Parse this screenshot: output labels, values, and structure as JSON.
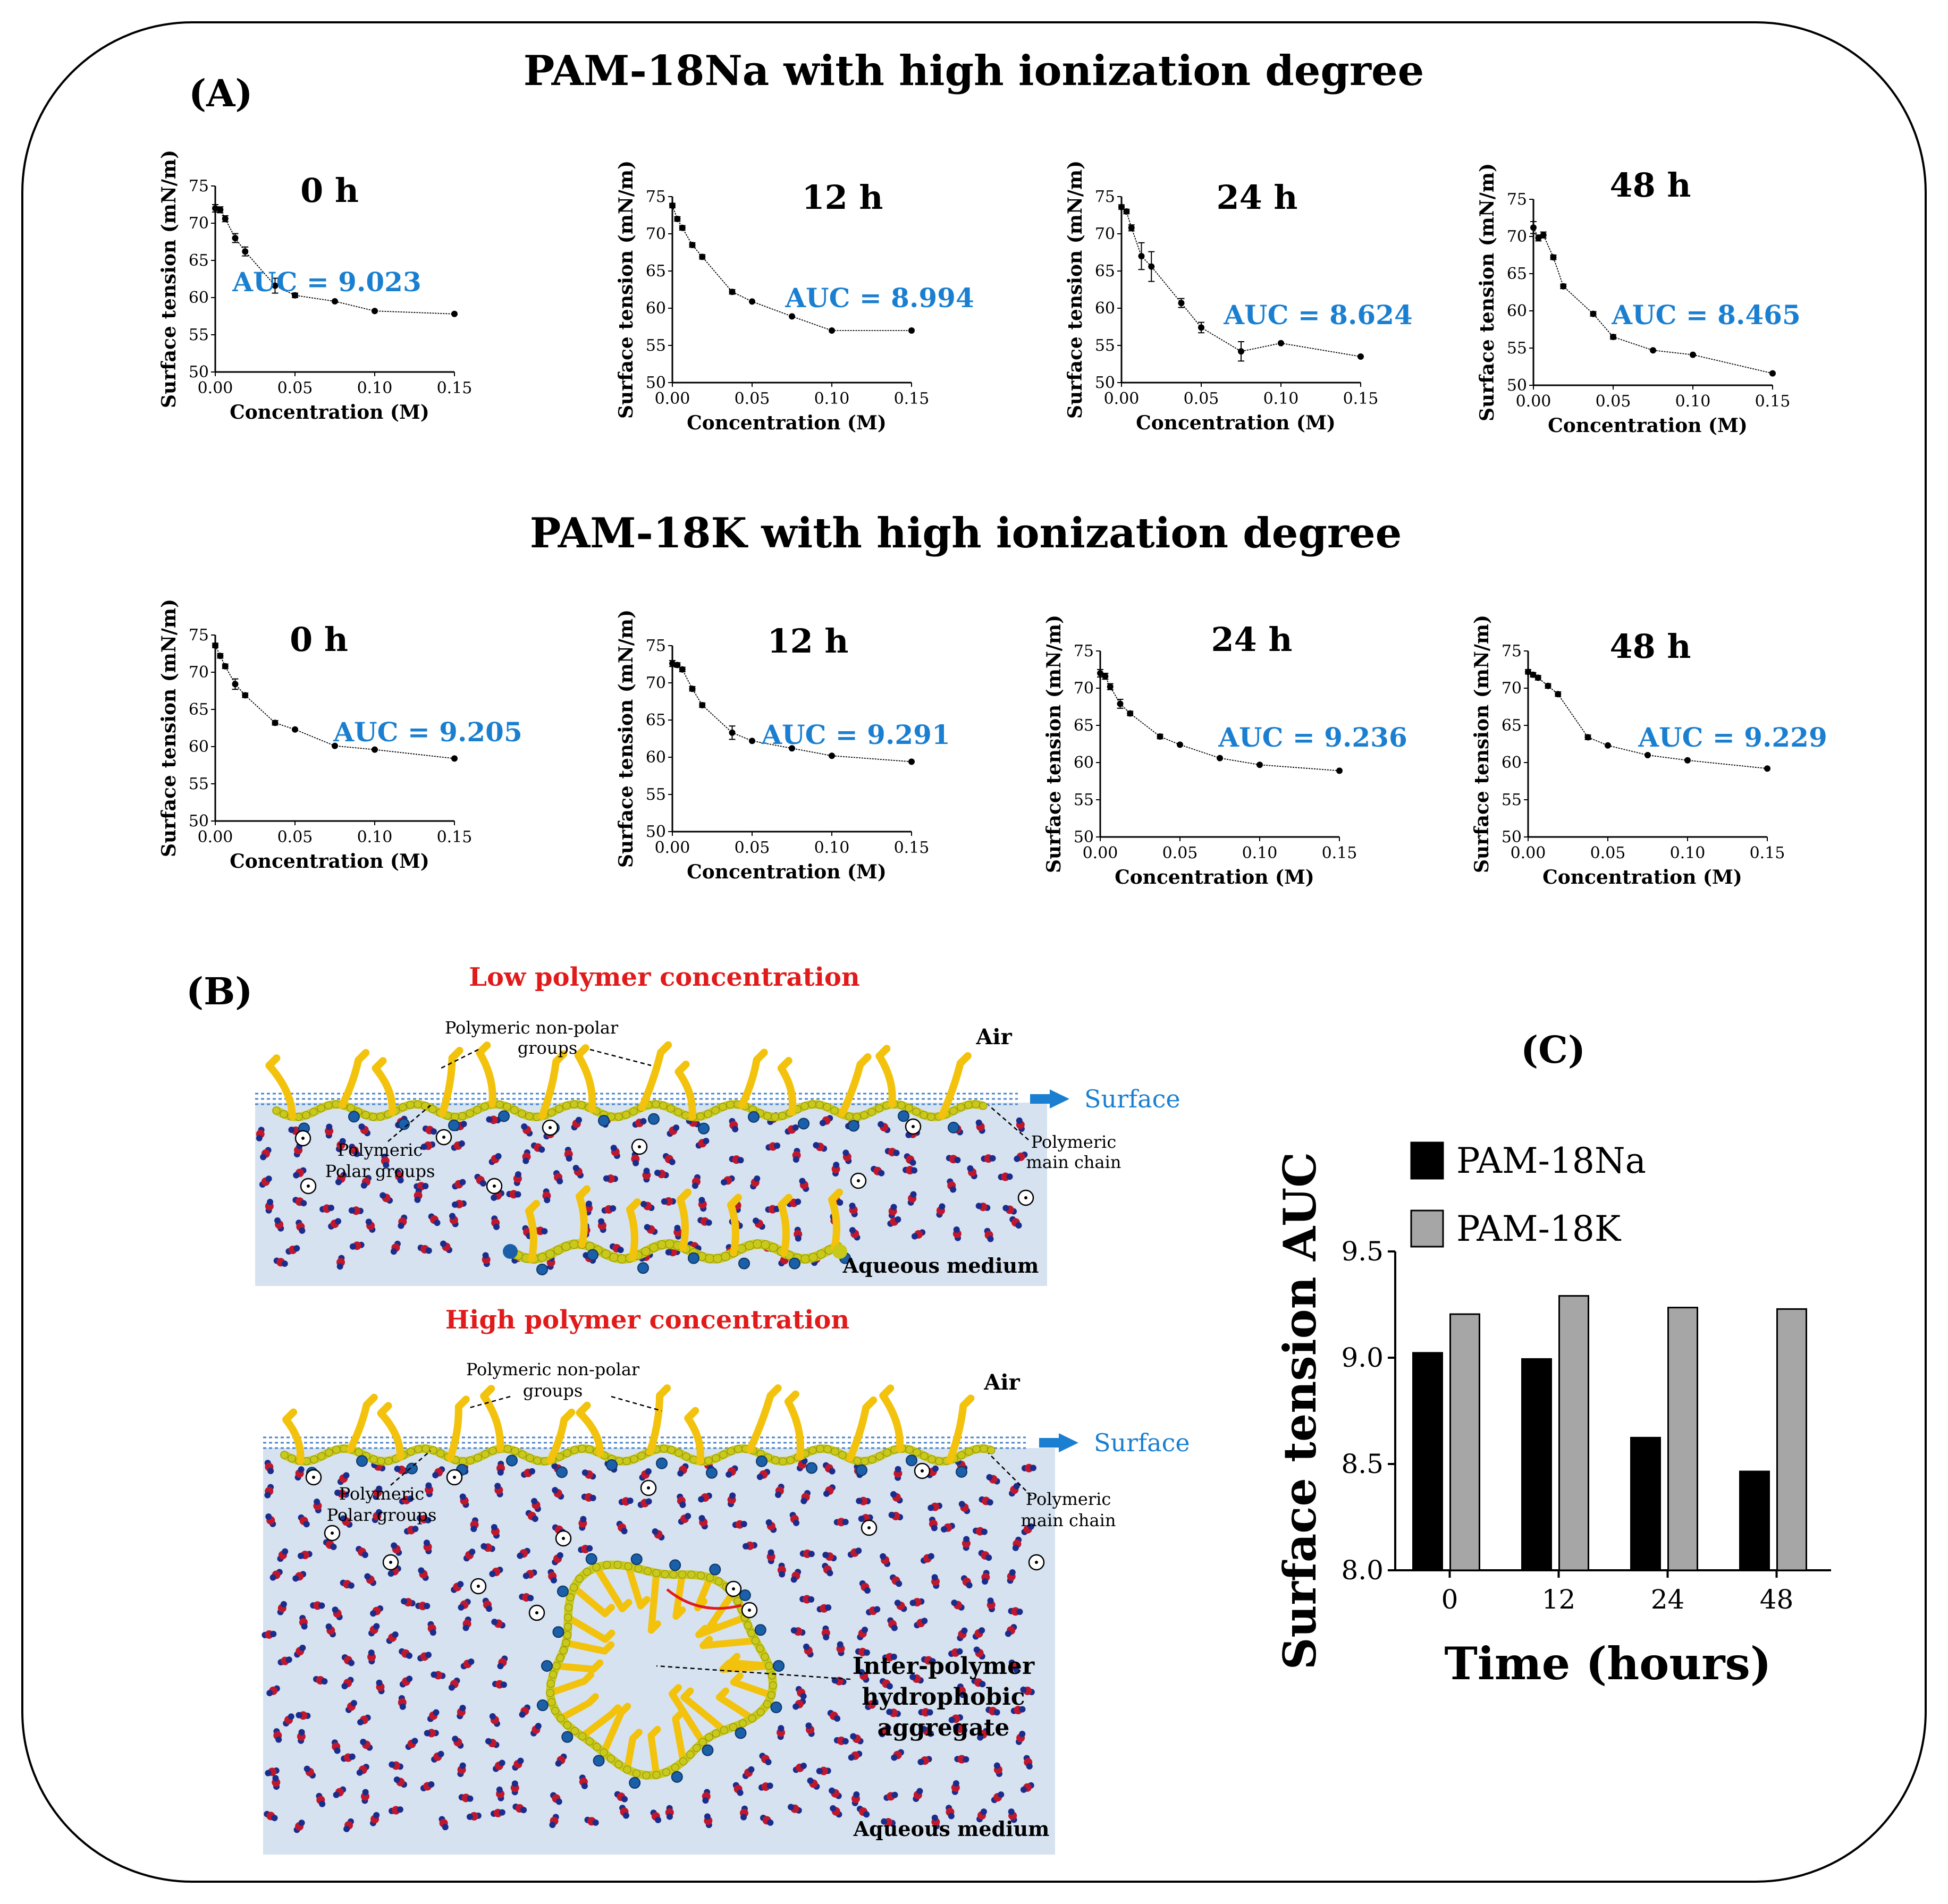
{
  "panel_A": {
    "label": "(A)",
    "title_na": "PAM-18Na with high ionization degree",
    "title_k": "PAM-18K with high ionization degree"
  },
  "panel_B": {
    "label": "(B)",
    "low_title": "Low polymer concentration",
    "high_title": "High polymer concentration",
    "air": "Air",
    "surface": "Surface",
    "aqueous": "Aqueous medium",
    "nonpolar_1": "Polymeric non-polar",
    "nonpolar_2": "groups",
    "polar_1": "Polymeric",
    "polar_2": "Polar groups",
    "main_1": "Polymeric",
    "main_2": "main chain",
    "aggregate_1": "Inter-polymer",
    "aggregate_2": "hydrophobic",
    "aggregate_3": "aggregate"
  },
  "panel_C": {
    "label": "(C)"
  },
  "colors": {
    "auc_text": "#1a7fd0",
    "bar_na": "#000000",
    "bar_k": "#a6a6a6",
    "water_bg": "#d6e2f0",
    "polymer": "#f2c20c",
    "chain": "#c9c91a",
    "polar_bead": "#1a5fa8",
    "water_o": "#c0172b",
    "water_h": "#1a2d8c",
    "highlight": "#e11b1b"
  },
  "chart_data": [
    {
      "type": "line",
      "group": "PAM-18Na",
      "title": "0 h",
      "auc_label": "AUC = 9.023",
      "xlabel": "Concentration (M)",
      "ylabel": "Surface tension (mN/m)",
      "xlim": [
        0,
        0.15
      ],
      "ylim": [
        50,
        75
      ],
      "xticks": [
        "0.00",
        "0.05",
        "0.10",
        "0.15"
      ],
      "yticks": [
        "50",
        "55",
        "60",
        "65",
        "70",
        "75"
      ],
      "x": [
        0.0,
        0.00313,
        0.00625,
        0.0125,
        0.01875,
        0.0375,
        0.05,
        0.075,
        0.1,
        0.15
      ],
      "y": [
        72.0,
        71.8,
        70.6,
        68.0,
        66.2,
        61.6,
        60.3,
        59.5,
        58.2,
        57.8
      ],
      "err": [
        0.5,
        0.4,
        0.4,
        0.6,
        0.6,
        1.0,
        0.3,
        0.2,
        0.2,
        0.2
      ]
    },
    {
      "type": "line",
      "group": "PAM-18Na",
      "title": "12 h",
      "auc_label": "AUC = 8.994",
      "xlabel": "Concentration (M)",
      "ylabel": "Surface tension (mN/m)",
      "xlim": [
        0,
        0.15
      ],
      "ylim": [
        50,
        75
      ],
      "xticks": [
        "0.00",
        "0.05",
        "0.10",
        "0.15"
      ],
      "yticks": [
        "50",
        "55",
        "60",
        "65",
        "70",
        "75"
      ],
      "x": [
        0.0,
        0.00313,
        0.00625,
        0.0125,
        0.01875,
        0.0375,
        0.05,
        0.075,
        0.1,
        0.15
      ],
      "y": [
        73.8,
        72.0,
        70.8,
        68.5,
        66.9,
        62.2,
        60.9,
        58.9,
        57.0,
        57.0
      ],
      "err": [
        0.3,
        0.3,
        0.3,
        0.3,
        0.3,
        0.3,
        0.2,
        0.2,
        0.2,
        0.2
      ]
    },
    {
      "type": "line",
      "group": "PAM-18Na",
      "title": "24 h",
      "auc_label": "AUC = 8.624",
      "xlabel": "Concentration (M)",
      "ylabel": "Surface tension (mN/m)",
      "xlim": [
        0,
        0.15
      ],
      "ylim": [
        50,
        75
      ],
      "xticks": [
        "0.00",
        "0.05",
        "0.10",
        "0.15"
      ],
      "yticks": [
        "50",
        "55",
        "60",
        "65",
        "70",
        "75"
      ],
      "x": [
        0.0,
        0.00313,
        0.00625,
        0.0125,
        0.01875,
        0.0375,
        0.05,
        0.075,
        0.1,
        0.15
      ],
      "y": [
        73.6,
        73.0,
        70.8,
        67.0,
        65.6,
        60.7,
        57.4,
        54.2,
        55.3,
        53.5
      ],
      "err": [
        0.3,
        0.3,
        0.4,
        1.8,
        2.0,
        0.6,
        0.7,
        1.3,
        0.2,
        0.2
      ]
    },
    {
      "type": "line",
      "group": "PAM-18Na",
      "title": "48 h",
      "auc_label": "AUC = 8.465",
      "xlabel": "Concentration (M)",
      "ylabel": "Surface tension (mN/m)",
      "xlim": [
        0,
        0.15
      ],
      "ylim": [
        50,
        75
      ],
      "xticks": [
        "0.00",
        "0.05",
        "0.10",
        "0.15"
      ],
      "yticks": [
        "50",
        "55",
        "60",
        "65",
        "70",
        "75"
      ],
      "x": [
        0.0,
        0.00313,
        0.00625,
        0.0125,
        0.01875,
        0.0375,
        0.05,
        0.075,
        0.1,
        0.15
      ],
      "y": [
        71.2,
        69.8,
        70.2,
        67.2,
        63.3,
        59.6,
        56.5,
        54.7,
        54.1,
        51.6
      ],
      "err": [
        0.8,
        0.4,
        0.4,
        0.3,
        0.3,
        0.3,
        0.3,
        0.2,
        0.2,
        0.2
      ]
    },
    {
      "type": "line",
      "group": "PAM-18K",
      "title": "0 h",
      "auc_label": "AUC = 9.205",
      "xlabel": "Concentration (M)",
      "ylabel": "Surface tension (mN/m)",
      "xlim": [
        0,
        0.15
      ],
      "ylim": [
        50,
        75
      ],
      "xticks": [
        "0.00",
        "0.05",
        "0.10",
        "0.15"
      ],
      "yticks": [
        "50",
        "55",
        "60",
        "65",
        "70",
        "75"
      ],
      "x": [
        0.0,
        0.00313,
        0.00625,
        0.0125,
        0.01875,
        0.0375,
        0.05,
        0.075,
        0.1,
        0.15
      ],
      "y": [
        73.6,
        72.2,
        70.8,
        68.4,
        66.9,
        63.2,
        62.3,
        60.1,
        59.6,
        58.4
      ],
      "err": [
        0.3,
        0.3,
        0.3,
        0.7,
        0.3,
        0.3,
        0.2,
        0.2,
        0.2,
        0.2
      ]
    },
    {
      "type": "line",
      "group": "PAM-18K",
      "title": "12 h",
      "auc_label": "AUC = 9.291",
      "xlabel": "Concentration (M)",
      "ylabel": "Surface tension (mN/m)",
      "xlim": [
        0,
        0.15
      ],
      "ylim": [
        50,
        75
      ],
      "xticks": [
        "0.00",
        "0.05",
        "0.10",
        "0.15"
      ],
      "yticks": [
        "50",
        "55",
        "60",
        "65",
        "70",
        "75"
      ],
      "x": [
        0.0,
        0.00313,
        0.00625,
        0.0125,
        0.01875,
        0.0375,
        0.05,
        0.075,
        0.1,
        0.15
      ],
      "y": [
        72.6,
        72.4,
        71.8,
        69.2,
        67.0,
        63.3,
        62.2,
        61.2,
        60.2,
        59.4
      ],
      "err": [
        0.4,
        0.3,
        0.3,
        0.3,
        0.3,
        0.9,
        0.2,
        0.2,
        0.2,
        0.2
      ]
    },
    {
      "type": "line",
      "group": "PAM-18K",
      "title": "24 h",
      "auc_label": "AUC = 9.236",
      "xlabel": "Concentration (M)",
      "ylabel": "Surface tension (mN/m)",
      "xlim": [
        0,
        0.15
      ],
      "ylim": [
        50,
        75
      ],
      "xticks": [
        "0.00",
        "0.05",
        "0.10",
        "0.15"
      ],
      "yticks": [
        "50",
        "55",
        "60",
        "65",
        "70",
        "75"
      ],
      "x": [
        0.0,
        0.00313,
        0.00625,
        0.0125,
        0.01875,
        0.0375,
        0.05,
        0.075,
        0.1,
        0.15
      ],
      "y": [
        72.0,
        71.6,
        70.2,
        67.9,
        66.6,
        63.5,
        62.4,
        60.6,
        59.7,
        58.9
      ],
      "err": [
        0.5,
        0.4,
        0.4,
        0.6,
        0.3,
        0.3,
        0.2,
        0.2,
        0.2,
        0.2
      ]
    },
    {
      "type": "line",
      "group": "PAM-18K",
      "title": "48 h",
      "auc_label": "AUC = 9.229",
      "xlabel": "Concentration (M)",
      "ylabel": "Surface tension (mN/m)",
      "xlim": [
        0,
        0.15
      ],
      "ylim": [
        50,
        75
      ],
      "xticks": [
        "0.00",
        "0.05",
        "0.10",
        "0.15"
      ],
      "yticks": [
        "50",
        "55",
        "60",
        "65",
        "70",
        "75"
      ],
      "x": [
        0.0,
        0.00313,
        0.00625,
        0.0125,
        0.01875,
        0.0375,
        0.05,
        0.075,
        0.1,
        0.15
      ],
      "y": [
        72.2,
        71.8,
        71.4,
        70.3,
        69.2,
        63.4,
        62.3,
        61.0,
        60.3,
        59.2
      ],
      "err": [
        0.3,
        0.3,
        0.3,
        0.3,
        0.3,
        0.3,
        0.2,
        0.2,
        0.2,
        0.2
      ]
    },
    {
      "type": "bar",
      "categories": [
        "0",
        "12",
        "24",
        "48"
      ],
      "series": [
        {
          "name": "PAM-18Na",
          "values": [
            9.023,
            8.994,
            8.624,
            8.465
          ]
        },
        {
          "name": "PAM-18K",
          "values": [
            9.205,
            9.291,
            9.236,
            9.229
          ]
        }
      ],
      "xlabel": "Time (hours)",
      "ylabel": "Surface tension AUC",
      "ylim": [
        8.0,
        9.5
      ],
      "yticks": [
        "8.0",
        "8.5",
        "9.0",
        "9.5"
      ]
    }
  ]
}
